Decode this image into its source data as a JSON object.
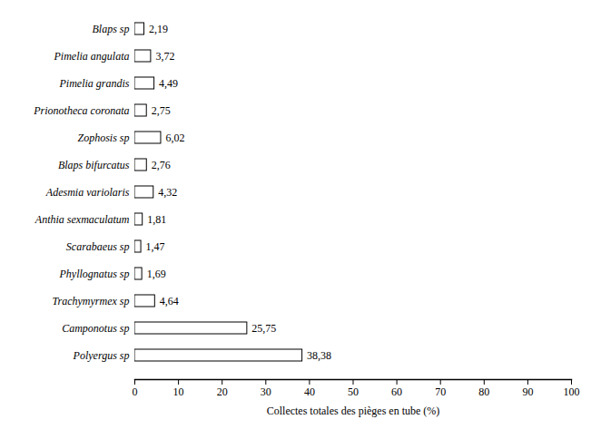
{
  "chart_data": {
    "type": "bar",
    "orientation": "horizontal",
    "x_label": "Collectes totales des pièges en tube (%)",
    "categories": [
      "Blaps sp",
      "Pimelia angulata",
      "Pimelia grandis",
      "Prionotheca coronata",
      "Zophosis sp",
      "Blaps bifurcatus",
      "Adesmia variolaris",
      "Anthia sexmaculatum",
      "Scarabaeus sp",
      "Phyllognatus sp",
      "Trachymyrmex sp",
      "Camponotus sp",
      "Polyergus sp"
    ],
    "values": [
      2.19,
      3.72,
      4.49,
      2.75,
      6.02,
      2.76,
      4.32,
      1.81,
      1.47,
      1.69,
      4.64,
      25.75,
      38.38
    ],
    "value_labels": [
      "2,19",
      "3,72",
      "4,49",
      "2,75",
      "6,02",
      "2,76",
      "4,32",
      "1,81",
      "1,47",
      "1,69",
      "4,64",
      "25,75",
      "38,38"
    ],
    "data_labels": true,
    "color": "#ffffff",
    "xlim": [
      0,
      100
    ],
    "xticks": [
      0,
      10,
      20,
      30,
      40,
      50,
      60,
      70,
      80,
      90,
      100
    ],
    "grid": false
  }
}
